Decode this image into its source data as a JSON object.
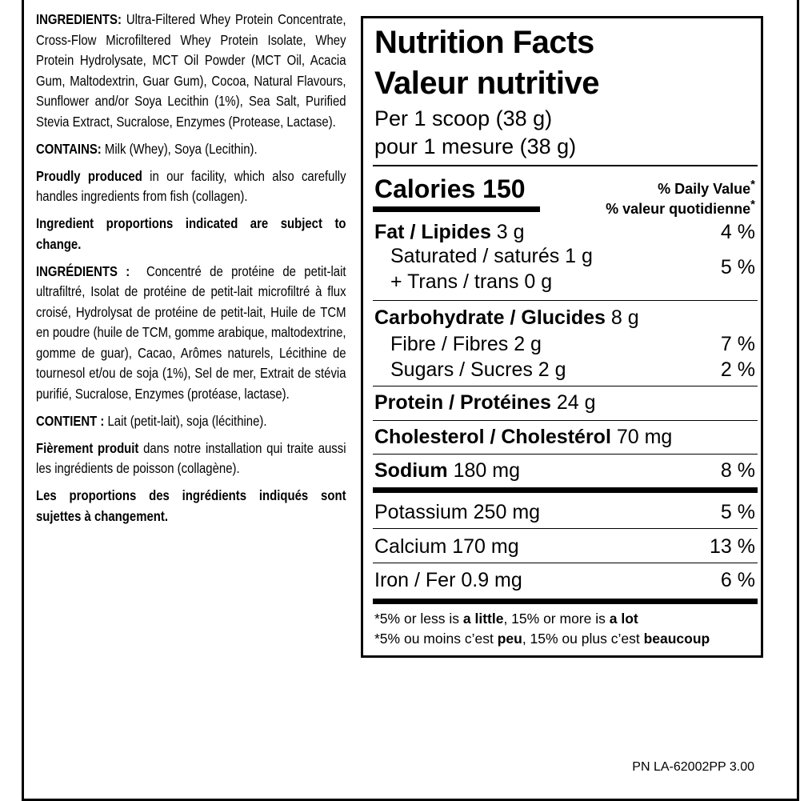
{
  "ingredients_en": {
    "label": "INGREDIENTS:",
    "text": " Ultra-Filtered Whey Protein Concentrate, Cross-Flow Microfiltered Whey Protein Isolate, Whey Protein Hydrolysate, MCT Oil Powder (MCT Oil, Acacia Gum, Maltodextrin, Guar Gum), Cocoa, Natural Flavours, Sunflower and/or Soya Lecithin (1%), Sea Salt, Purified Stevia Extract, Sucralose, Enzymes (Protease, Lactase)."
  },
  "contains_en": {
    "label": "CONTAINS:",
    "text": " Milk (Whey), Soya (Lecithin)."
  },
  "facility_en": {
    "label": "Proudly produced",
    "text": " in our facility, which also carefully handles ingredients from fish (collagen)."
  },
  "proportions_en": "Ingredient proportions indicated are subject to change.",
  "ingredients_fr": {
    "label": "INGRÉDIENTS :",
    "text": "  Concentré de protéine de petit-lait ultrafiltré, Isolat de protéine de petit-lait microfiltré à flux croisé, Hydrolysat de protéine de petit-lait, Huile de TCM en poudre (huile de TCM, gomme arabique, maltodextrine, gomme de guar), Cacao, Arômes naturels, Lécithine de tournesol et/ou de soja (1%), Sel de mer, Extrait de stévia purifié, Sucralose, Enzymes (protéase, lactase)."
  },
  "contains_fr": {
    "label": "CONTIENT :",
    "text": " Lait (petit-lait), soja (lécithine)."
  },
  "facility_fr": {
    "label": "Fièrement produit",
    "text": " dans notre installation qui traite aussi les ingrédients de poisson (collagène)."
  },
  "proportions_fr": "Les proportions des ingrédients indiqués sont sujettes à changement.",
  "nutrition": {
    "title_en": "Nutrition Facts",
    "title_fr": "Valeur nutritive",
    "serving_en": "Per 1 scoop (38 g)",
    "serving_fr": "pour 1 mesure (38 g)",
    "calories": "Calories 150",
    "dv_en": "% Daily Value",
    "dv_fr": "% valeur quotidienne",
    "asterisk": "*",
    "fat": {
      "label": "Fat / Lipides",
      "amount": " 3 g",
      "dv": "4 %"
    },
    "saturated": {
      "label": "Saturated / saturés 1 g"
    },
    "trans": {
      "label": "+ Trans / trans 0 g"
    },
    "sat_trans_dv": "5 %",
    "carb": {
      "label": "Carbohydrate / Glucides",
      "amount": " 8 g"
    },
    "fibre": {
      "label": "Fibre / Fibres 2 g",
      "dv": "7 %"
    },
    "sugars": {
      "label": "Sugars / Sucres 2 g",
      "dv": "2 %"
    },
    "protein": {
      "label": "Protein / Protéines",
      "amount": " 24 g"
    },
    "cholesterol": {
      "label": "Cholesterol / Cholestérol",
      "amount": " 70 mg"
    },
    "sodium": {
      "label": "Sodium",
      "amount": " 180 mg",
      "dv": "8 %"
    },
    "potassium": {
      "label": "Potassium 250 mg",
      "dv": "5 %"
    },
    "calcium": {
      "label": "Calcium 170 mg",
      "dv": "13 %"
    },
    "iron": {
      "label": "Iron / Fer 0.9 mg",
      "dv": "6 %"
    },
    "footnote_en": {
      "a": "*5% or less is ",
      "b": "a little",
      "c": ", 15% or more is ",
      "d": "a lot"
    },
    "footnote_fr": {
      "a": "*5% ou moins c’est ",
      "b": "peu",
      "c": ", 15% ou plus c’est ",
      "d": "beaucoup"
    }
  },
  "part_number": "PN LA-62002PP 3.00"
}
